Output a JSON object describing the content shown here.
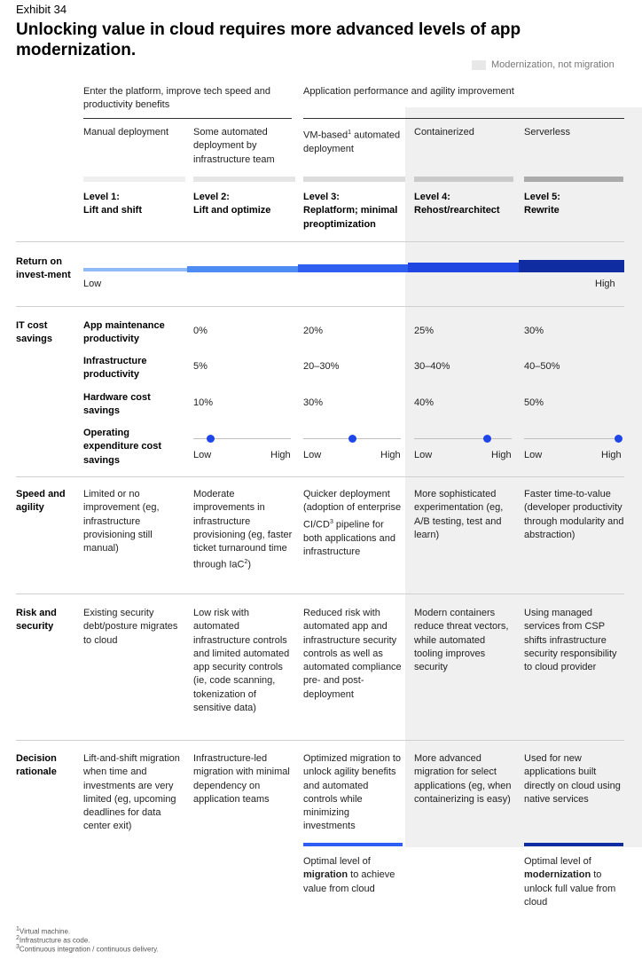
{
  "exhibit": "Exhibit 34",
  "title": "Unlocking value in cloud requires more advanced levels of app modernization.",
  "legend": {
    "label": "Modernization, not migration",
    "swatch_color": "#e8e8e8"
  },
  "groups": [
    "Enter the platform, improve tech speed and productivity benefits",
    "Application performance and agility improvement"
  ],
  "deployment": [
    {
      "text": "Manual deployment"
    },
    {
      "text": "Some automated deployment by infrastructure team"
    },
    {
      "pre": "VM-based",
      "sup": "1",
      "post": " automated deployment"
    },
    {
      "text": "Containerized"
    },
    {
      "text": "Serverless"
    }
  ],
  "levels": [
    {
      "num": "Level 1:",
      "name": "Lift and shift"
    },
    {
      "num": "Level 2:",
      "name": "Lift and optimize"
    },
    {
      "num": "Level 3:",
      "name": "Replatform; minimal preoptimization"
    },
    {
      "num": "Level 4:",
      "name": "Rehost/rearchitect"
    },
    {
      "num": "Level 5:",
      "name": "Rewrite"
    }
  ],
  "roi": {
    "label": "Return on invest-ment",
    "low": "Low",
    "high": "High",
    "colors": [
      "#8fbaf5",
      "#4d8cf2",
      "#2f5ff0",
      "#1f46e0",
      "#0f2da0"
    ]
  },
  "it_cost": {
    "label": "IT cost savings",
    "rows": [
      {
        "label": "App maintenance productivity",
        "values": [
          "0%",
          "20%",
          "25%",
          "30%"
        ]
      },
      {
        "label": "Infrastructure productivity",
        "values": [
          "5%",
          "20–30%",
          "30–40%",
          "40–50%"
        ]
      },
      {
        "label": "Hardware cost savings",
        "values": [
          "10%",
          "30%",
          "40%",
          "50%"
        ]
      }
    ],
    "opex_label": "Operating expenditure cost savings",
    "opex_low": "Low",
    "opex_high": "High",
    "opex_levels": [
      0.18,
      0.5,
      0.75,
      0.97
    ]
  },
  "speed": {
    "label": "Speed and agility",
    "cells": [
      {
        "pre": "Limited or no improvement (eg, infrastructure provisioning still manual)"
      },
      {
        "pre": "Moderate improvements in infrastructure provisioning (eg, faster ticket turnaround time through IaC",
        "sup": "2",
        "post": ")"
      },
      {
        "pre": "Quicker deployment (adoption of enterprise CI/CD",
        "sup": "3",
        "post": " pipeline for both applications and infrastructure"
      },
      {
        "pre": "More sophisticated experimentation (eg, A/B testing, test and learn)"
      },
      {
        "pre": "Faster time-to-value (developer productivity through modularity and abstraction)"
      }
    ]
  },
  "risk": {
    "label": "Risk and security",
    "cells": [
      "Existing security debt/posture migrates to cloud",
      "Low risk with automated infrastructure controls and limited automated app security controls (ie, code scanning, tokenization of sensitive data)",
      "Reduced risk with automated app and infrastructure security controls as well as automated compliance pre- and post-deployment",
      "Modern containers reduce threat vectors, while automated tooling improves security",
      "Using managed services from CSP shifts infrastructure security responsibility to cloud provider"
    ]
  },
  "decision": {
    "label": "Decision rationale",
    "cells": [
      "Lift-and-shift migration when time and investments are very limited (eg, upcoming deadlines for data center exit)",
      "Infrastructure-led migration with minimal dependency on application teams",
      "Optimized migration to unlock agility benefits and automated controls while minimizing investments",
      "More advanced migration for select applications (eg, when containerizing is easy)",
      "Used for new applications built directly on cloud using native services"
    ]
  },
  "optimal": [
    {
      "pre": "Optimal level of ",
      "bold": "migration",
      "post": " to achieve value from cloud",
      "color": "#2f5ff0"
    },
    {
      "pre": "Optimal level of ",
      "bold": "modernization",
      "post": " to unlock full value from cloud",
      "color": "#0f2da0"
    }
  ],
  "footnotes": [
    {
      "sup": "1",
      "text": "Virtual machine."
    },
    {
      "sup": "2",
      "text": "Infrastructure as code."
    },
    {
      "sup": "3",
      "text": "Continuous integration / continuous delivery."
    }
  ]
}
